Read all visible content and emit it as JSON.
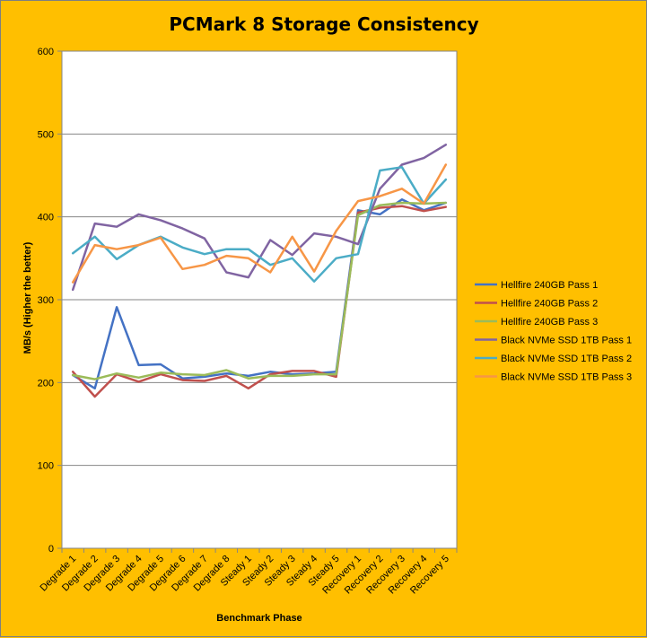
{
  "chart_data": {
    "type": "line",
    "title": "PCMark 8 Storage Consistency",
    "xlabel": "Benchmark Phase",
    "ylabel": "MB/s (Higher the better)",
    "ylim": [
      0,
      600
    ],
    "yticks": [
      "0",
      "100",
      "200",
      "300",
      "400",
      "500",
      "600"
    ],
    "grid": "horizontal",
    "legend_position": "right",
    "categories": [
      "Degrade 1",
      "Degrade 2",
      "Degrade 3",
      "Degrade 4",
      "Degrade 5",
      "Degrade 6",
      "Degrade 7",
      "Degrade 8",
      "Steady 1",
      "Steady 2",
      "Steady 3",
      "Steady 4",
      "Steady 5",
      "Recovery 1",
      "Recovery 2",
      "Recovery 3",
      "Recovery 4",
      "Recovery 5"
    ],
    "series": [
      {
        "name": "Hellfire 240GB Pass 1",
        "color": "#4472C4",
        "values": [
          209,
          193,
          291,
          221,
          222,
          205,
          207,
          211,
          208,
          213,
          210,
          211,
          213,
          408,
          403,
          421,
          408,
          417
        ]
      },
      {
        "name": "Hellfire 240GB Pass 2",
        "color": "#C0504D",
        "values": [
          213,
          183,
          210,
          201,
          210,
          203,
          202,
          208,
          193,
          210,
          214,
          214,
          207,
          405,
          411,
          413,
          407,
          412
        ]
      },
      {
        "name": "Hellfire 240GB Pass 3",
        "color": "#9BBB59",
        "values": [
          209,
          204,
          211,
          206,
          212,
          210,
          209,
          215,
          205,
          208,
          208,
          210,
          210,
          402,
          414,
          417,
          416,
          417
        ]
      },
      {
        "name": "Black NVMe SSD 1TB Pass 1",
        "color": "#8064A2",
        "values": [
          312,
          392,
          388,
          403,
          396,
          386,
          374,
          333,
          327,
          372,
          354,
          380,
          376,
          367,
          434,
          463,
          471,
          487
        ]
      },
      {
        "name": "Black NVMe SSD 1TB Pass 2",
        "color": "#4BACC6",
        "values": [
          356,
          376,
          349,
          366,
          376,
          363,
          355,
          361,
          361,
          342,
          350,
          322,
          350,
          355,
          456,
          460,
          416,
          445
        ]
      },
      {
        "name": "Black NVMe SSD 1TB Pass 3",
        "color": "#F79646",
        "values": [
          321,
          366,
          361,
          366,
          375,
          337,
          342,
          353,
          350,
          333,
          376,
          334,
          383,
          419,
          425,
          434,
          416,
          463
        ]
      }
    ]
  }
}
